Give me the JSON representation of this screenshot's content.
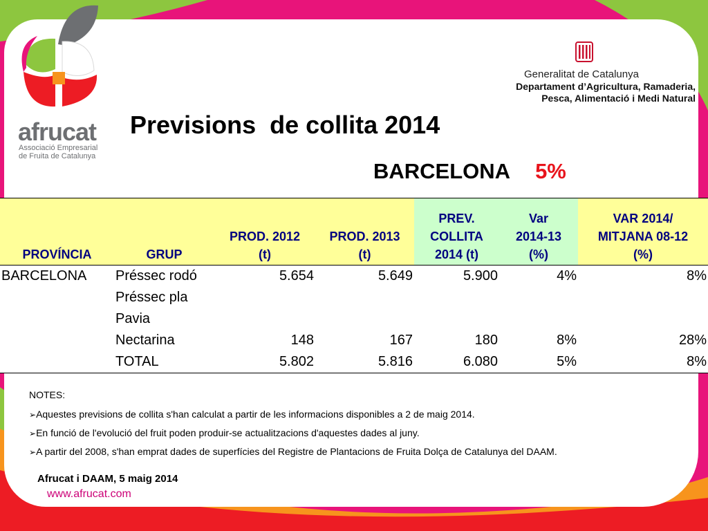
{
  "logo": {
    "name": "afrucat",
    "subtitle_line1": "Associació Empresarial",
    "subtitle_line2": "de Fruita de Catalunya"
  },
  "government": {
    "title": "Generalitat de Catalunya",
    "dept_line1": "Departament d’Agricultura, Ramaderia,",
    "dept_line2": "Pesca, Alimentació i Medi Natural"
  },
  "title": "Previsions  de collita 2014",
  "subtitle": {
    "region": "BARCELONA",
    "percent": "5%"
  },
  "table": {
    "headers": {
      "provincia": "PROVÍNCIA",
      "grup": "GRUP",
      "prod2012": [
        "PROD. 2012",
        "(t)"
      ],
      "prod2013": [
        "PROD. 2013",
        "(t)"
      ],
      "prev2014": [
        "PREV.",
        "COLLITA",
        "2014 (t)"
      ],
      "var": [
        "Var",
        "2014-13",
        "(%)"
      ],
      "var_mitjana": [
        "VAR 2014/",
        "MITJANA 08-12",
        "(%)"
      ]
    },
    "rows": [
      {
        "provincia": "BARCELONA",
        "grup": "Préssec rodó",
        "prod2012": "5.654",
        "prod2013": "5.649",
        "prev2014": "5.900",
        "var": "4%",
        "var_mitjana": "8%"
      },
      {
        "provincia": "",
        "grup": "Préssec pla",
        "prod2012": "",
        "prod2013": "",
        "prev2014": "",
        "var": "",
        "var_mitjana": ""
      },
      {
        "provincia": "",
        "grup": "Pavia",
        "prod2012": "",
        "prod2013": "",
        "prev2014": "",
        "var": "",
        "var_mitjana": ""
      },
      {
        "provincia": "",
        "grup": "Nectarina",
        "prod2012": "148",
        "prod2013": "167",
        "prev2014": "180",
        "var": "8%",
        "var_mitjana": "28%"
      },
      {
        "provincia": "",
        "grup": "TOTAL",
        "prod2012": "5.802",
        "prod2013": "5.816",
        "prev2014": "6.080",
        "var": "5%",
        "var_mitjana": "8%"
      }
    ]
  },
  "notes": {
    "heading": "NOTES:",
    "bullet": "➢",
    "items": [
      "Aquestes previsions  de collita s'han calculat a partir de les informacions disponibles a 2 de maig 2014.",
      "En funció de l'evolució del fruit poden produir-se actualitzacions d'aquestes dades al juny.",
      "A partir del 2008, s'han emprat dades de superfícies del Registre de Plantacions de Fruita Dolça de Catalunya del DAAM."
    ]
  },
  "footer": {
    "credit": "Afrucat i DAAM, 5 maig 2014",
    "link": "www.afrucat.com"
  },
  "colors": {
    "magenta": "#e8147a",
    "green": "#8dc63f",
    "orange": "#f7941d",
    "red": "#ed1c24",
    "header_yellow": "#ffff99",
    "header_green": "#ccffcc",
    "header_text": "#000080",
    "percent_red": "#e8141c"
  }
}
